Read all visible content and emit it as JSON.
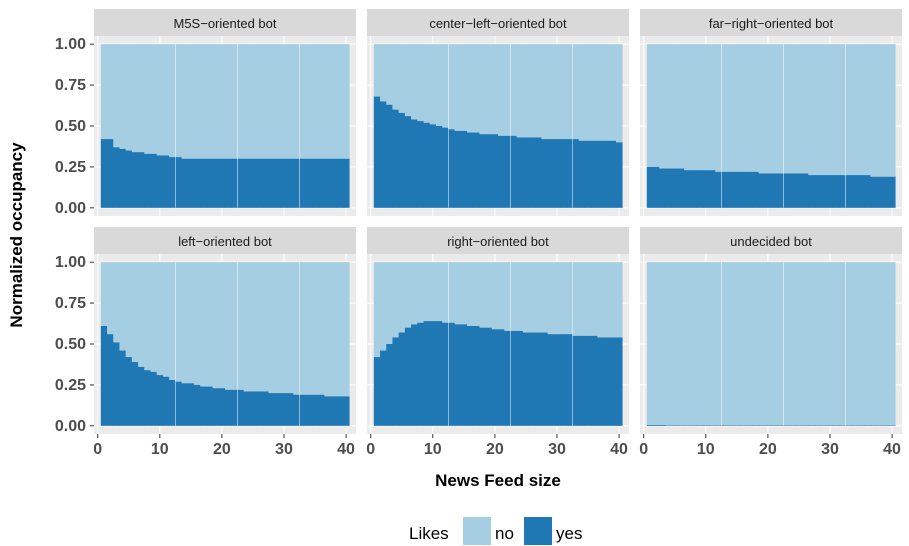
{
  "chart_data": {
    "type": "bar",
    "stacked": true,
    "normalized": true,
    "xlabel": "News Feed size",
    "ylabel": "Normalized occupancy",
    "xlim": [
      0,
      41
    ],
    "ylim": [
      0,
      1
    ],
    "x_ticks": [
      0,
      10,
      20,
      30,
      40
    ],
    "y_ticks": [
      "0.00",
      "0.25",
      "0.50",
      "0.75",
      "1.00"
    ],
    "grid": true,
    "legend": {
      "title": "Likes",
      "placement": "bottom",
      "entries": [
        {
          "label": "no",
          "color": "#a6cee3"
        },
        {
          "label": "yes",
          "color": "#1f78b4"
        }
      ]
    },
    "panels": [
      {
        "title": "M5S−oriented bot",
        "yes": [
          0.42,
          0.42,
          0.37,
          0.36,
          0.35,
          0.34,
          0.34,
          0.33,
          0.33,
          0.32,
          0.32,
          0.31,
          0.31,
          0.3,
          0.3,
          0.3,
          0.3,
          0.3,
          0.3,
          0.3,
          0.3,
          0.3,
          0.3,
          0.3,
          0.3,
          0.3,
          0.3,
          0.3,
          0.3,
          0.3,
          0.3,
          0.3,
          0.3,
          0.3,
          0.3,
          0.3,
          0.3,
          0.3,
          0.3,
          0.3
        ]
      },
      {
        "title": "center−left−oriented bot",
        "yes": [
          0.68,
          0.65,
          0.63,
          0.6,
          0.58,
          0.56,
          0.54,
          0.53,
          0.52,
          0.51,
          0.5,
          0.49,
          0.48,
          0.47,
          0.47,
          0.46,
          0.46,
          0.45,
          0.45,
          0.45,
          0.44,
          0.44,
          0.44,
          0.43,
          0.43,
          0.43,
          0.43,
          0.42,
          0.42,
          0.42,
          0.42,
          0.42,
          0.42,
          0.41,
          0.41,
          0.41,
          0.41,
          0.41,
          0.41,
          0.4
        ]
      },
      {
        "title": "far−right−oriented bot",
        "yes": [
          0.25,
          0.25,
          0.24,
          0.24,
          0.24,
          0.24,
          0.23,
          0.23,
          0.23,
          0.23,
          0.23,
          0.22,
          0.22,
          0.22,
          0.22,
          0.22,
          0.22,
          0.22,
          0.21,
          0.21,
          0.21,
          0.21,
          0.21,
          0.21,
          0.21,
          0.21,
          0.2,
          0.2,
          0.2,
          0.2,
          0.2,
          0.2,
          0.2,
          0.2,
          0.2,
          0.2,
          0.19,
          0.19,
          0.19,
          0.19
        ]
      },
      {
        "title": "left−oriented bot",
        "yes": [
          0.61,
          0.56,
          0.51,
          0.46,
          0.42,
          0.39,
          0.36,
          0.34,
          0.33,
          0.31,
          0.3,
          0.28,
          0.27,
          0.26,
          0.26,
          0.25,
          0.24,
          0.24,
          0.23,
          0.23,
          0.22,
          0.22,
          0.22,
          0.21,
          0.21,
          0.21,
          0.21,
          0.2,
          0.2,
          0.2,
          0.2,
          0.19,
          0.19,
          0.19,
          0.19,
          0.19,
          0.18,
          0.18,
          0.18,
          0.18
        ]
      },
      {
        "title": "right−oriented bot",
        "yes": [
          0.42,
          0.46,
          0.5,
          0.54,
          0.57,
          0.6,
          0.62,
          0.63,
          0.64,
          0.64,
          0.64,
          0.63,
          0.63,
          0.62,
          0.62,
          0.61,
          0.61,
          0.6,
          0.6,
          0.59,
          0.59,
          0.58,
          0.58,
          0.58,
          0.57,
          0.57,
          0.57,
          0.57,
          0.56,
          0.56,
          0.56,
          0.56,
          0.55,
          0.55,
          0.55,
          0.55,
          0.54,
          0.54,
          0.54,
          0.54
        ]
      },
      {
        "title": "undecided bot",
        "yes": [
          0.005,
          0.005,
          0.005,
          0.003,
          0.003,
          0.003,
          0.003,
          0.003,
          0.003,
          0.003,
          0.003,
          0.003,
          0.003,
          0.003,
          0.003,
          0.003,
          0.003,
          0.003,
          0.003,
          0.003,
          0.003,
          0.003,
          0.003,
          0.003,
          0.003,
          0.003,
          0.003,
          0.003,
          0.003,
          0.003,
          0.003,
          0.003,
          0.003,
          0.003,
          0.003,
          0.003,
          0.003,
          0.003,
          0.003,
          0.003
        ]
      }
    ]
  }
}
